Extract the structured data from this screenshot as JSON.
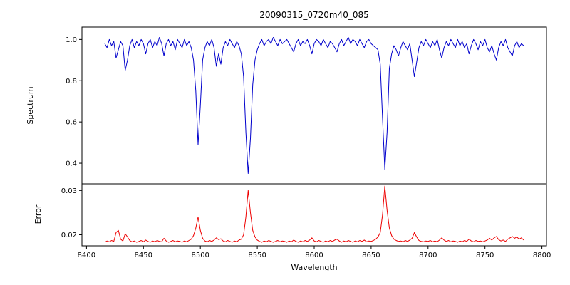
{
  "figure": {
    "background": "#ffffff"
  },
  "chart_data": [
    {
      "type": "line",
      "panel": "spectrum",
      "title": "20090315_0720m40_085",
      "ylabel": "Spectrum",
      "line_color": "#0000cc",
      "xlim": [
        8396,
        8804
      ],
      "ylim": [
        0.3,
        1.06
      ],
      "yticks": [
        0.4,
        0.6,
        0.8,
        1.0
      ],
      "ytick_labels": [
        "0.4",
        "0.6",
        "0.8",
        "1.0"
      ],
      "x_start": 8416,
      "x_step": 2,
      "values": [
        0.98,
        0.96,
        1.0,
        0.97,
        0.99,
        0.91,
        0.95,
        0.99,
        0.97,
        0.85,
        0.9,
        0.97,
        1.0,
        0.96,
        0.99,
        0.97,
        1.0,
        0.98,
        0.93,
        0.98,
        1.0,
        0.96,
        0.99,
        0.97,
        1.01,
        0.98,
        0.92,
        0.98,
        1.0,
        0.97,
        0.99,
        0.95,
        1.0,
        0.98,
        0.96,
        1.0,
        0.97,
        0.99,
        0.96,
        0.9,
        0.75,
        0.49,
        0.68,
        0.9,
        0.96,
        0.99,
        0.97,
        1.0,
        0.96,
        0.87,
        0.93,
        0.88,
        0.96,
        0.99,
        0.97,
        1.0,
        0.98,
        0.96,
        0.99,
        0.97,
        0.93,
        0.82,
        0.55,
        0.35,
        0.52,
        0.78,
        0.9,
        0.95,
        0.98,
        1.0,
        0.97,
        0.99,
        1.0,
        0.98,
        1.01,
        0.99,
        0.97,
        1.0,
        0.98,
        0.99,
        1.0,
        0.98,
        0.96,
        0.94,
        0.98,
        1.0,
        0.97,
        0.99,
        0.98,
        1.0,
        0.97,
        0.93,
        0.98,
        1.0,
        0.99,
        0.97,
        1.0,
        0.98,
        0.96,
        0.99,
        0.98,
        0.96,
        0.94,
        0.98,
        1.0,
        0.97,
        0.99,
        1.01,
        0.98,
        1.0,
        0.99,
        0.97,
        1.0,
        0.98,
        0.96,
        0.99,
        1.0,
        0.98,
        0.97,
        0.96,
        0.95,
        0.88,
        0.62,
        0.37,
        0.55,
        0.86,
        0.93,
        0.97,
        0.95,
        0.92,
        0.96,
        0.99,
        0.97,
        0.95,
        0.98,
        0.9,
        0.82,
        0.89,
        0.96,
        0.99,
        0.97,
        1.0,
        0.98,
        0.96,
        0.99,
        0.97,
        1.0,
        0.95,
        0.91,
        0.96,
        0.99,
        0.97,
        1.0,
        0.98,
        0.96,
        1.0,
        0.97,
        0.99,
        0.96,
        0.98,
        0.93,
        0.97,
        1.0,
        0.98,
        0.95,
        0.99,
        0.97,
        1.0,
        0.96,
        0.94,
        0.97,
        0.93,
        0.9,
        0.96,
        0.99,
        0.97,
        1.0,
        0.96,
        0.94,
        0.92,
        0.97,
        0.99,
        0.96,
        0.98,
        0.97
      ]
    },
    {
      "type": "line",
      "panel": "error",
      "ylabel": "Error",
      "xlabel": "Wavelength",
      "line_color": "#ee0000",
      "xlim": [
        8396,
        8804
      ],
      "ylim": [
        0.0175,
        0.0315
      ],
      "yticks": [
        0.02,
        0.03
      ],
      "ytick_labels": [
        "0.02",
        "0.03"
      ],
      "xticks": [
        8400,
        8450,
        8500,
        8550,
        8600,
        8650,
        8700,
        8750,
        8800
      ],
      "xtick_labels": [
        "8400",
        "8450",
        "8500",
        "8550",
        "8600",
        "8650",
        "8700",
        "8750",
        "8800"
      ],
      "x_start": 8416,
      "x_step": 2,
      "values": [
        0.0183,
        0.0186,
        0.0184,
        0.0187,
        0.0185,
        0.0205,
        0.021,
        0.019,
        0.0186,
        0.0202,
        0.0195,
        0.0187,
        0.0184,
        0.0186,
        0.0183,
        0.0185,
        0.0187,
        0.0184,
        0.0188,
        0.0185,
        0.0183,
        0.0186,
        0.0184,
        0.0187,
        0.0185,
        0.0184,
        0.0192,
        0.0186,
        0.0183,
        0.0185,
        0.0187,
        0.0184,
        0.0186,
        0.0185,
        0.0183,
        0.0186,
        0.0184,
        0.0187,
        0.019,
        0.0198,
        0.0215,
        0.024,
        0.021,
        0.0192,
        0.0186,
        0.0184,
        0.0187,
        0.0185,
        0.0188,
        0.0193,
        0.0189,
        0.0191,
        0.0186,
        0.0184,
        0.0187,
        0.0185,
        0.0183,
        0.0186,
        0.0184,
        0.0188,
        0.019,
        0.02,
        0.024,
        0.03,
        0.025,
        0.021,
        0.0195,
        0.0188,
        0.0185,
        0.0183,
        0.0186,
        0.0184,
        0.0187,
        0.0185,
        0.0183,
        0.0185,
        0.0187,
        0.0184,
        0.0186,
        0.0185,
        0.0183,
        0.0186,
        0.0184,
        0.0188,
        0.0185,
        0.0183,
        0.0186,
        0.0184,
        0.0187,
        0.0185,
        0.0188,
        0.0193,
        0.0186,
        0.0184,
        0.0187,
        0.0185,
        0.0183,
        0.0186,
        0.0184,
        0.0187,
        0.0185,
        0.0188,
        0.019,
        0.0186,
        0.0183,
        0.0186,
        0.0184,
        0.0187,
        0.0185,
        0.0183,
        0.0186,
        0.0184,
        0.0187,
        0.0185,
        0.0188,
        0.0184,
        0.0186,
        0.0185,
        0.0187,
        0.019,
        0.0195,
        0.0205,
        0.0245,
        0.031,
        0.0255,
        0.0215,
        0.0198,
        0.019,
        0.0187,
        0.0185,
        0.0186,
        0.0184,
        0.0187,
        0.0185,
        0.0188,
        0.0192,
        0.0205,
        0.0195,
        0.0187,
        0.0185,
        0.0184,
        0.0186,
        0.0185,
        0.0187,
        0.0184,
        0.0186,
        0.0184,
        0.0188,
        0.0193,
        0.0188,
        0.0185,
        0.0187,
        0.0184,
        0.0186,
        0.0185,
        0.0183,
        0.0186,
        0.0184,
        0.0187,
        0.0185,
        0.019,
        0.0186,
        0.0184,
        0.0187,
        0.0185,
        0.0186,
        0.0184,
        0.0186,
        0.0188,
        0.0192,
        0.0188,
        0.0193,
        0.0196,
        0.0189,
        0.0186,
        0.0188,
        0.0185,
        0.019,
        0.0193,
        0.0196,
        0.0192,
        0.0195,
        0.019,
        0.0193,
        0.0188
      ]
    }
  ]
}
